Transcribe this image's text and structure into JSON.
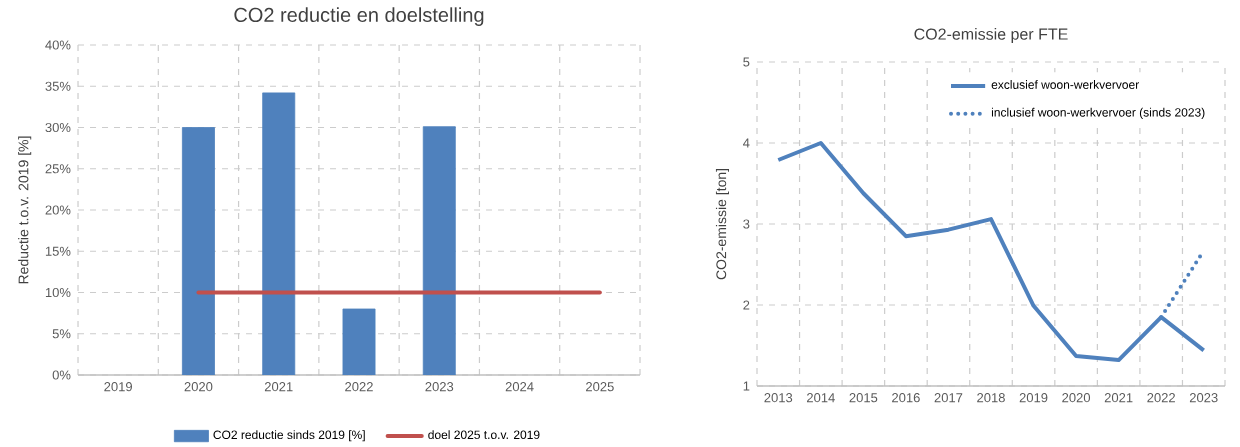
{
  "chart_data": [
    {
      "type": "bar",
      "title": "CO2 reductie en doelstelling",
      "ylabel": "Reductie t.o.v. 2019 [%]",
      "categories": [
        "2019",
        "2020",
        "2021",
        "2022",
        "2023",
        "2024",
        "2025"
      ],
      "series": [
        {
          "name": "CO2 reductie sinds 2019 [%]",
          "type": "bar",
          "color": "#4f81bd",
          "values": [
            null,
            30,
            34.2,
            8,
            30.1,
            null,
            null
          ]
        },
        {
          "name": "doel 2025 t.o.v. 2019",
          "type": "line",
          "color": "#c0504d",
          "values": [
            null,
            10,
            10,
            10,
            10,
            10,
            10
          ]
        }
      ],
      "ylim": [
        0,
        40
      ],
      "yticks": [
        {
          "value": 0,
          "label": "0%"
        },
        {
          "value": 5,
          "label": "5%"
        },
        {
          "value": 10,
          "label": "10%"
        },
        {
          "value": 15,
          "label": "15%"
        },
        {
          "value": 20,
          "label": "20%"
        },
        {
          "value": 25,
          "label": "25%"
        },
        {
          "value": 30,
          "label": "30%"
        },
        {
          "value": 35,
          "label": "35%"
        },
        {
          "value": 40,
          "label": "40%"
        }
      ],
      "grid": true,
      "legend": "bottom"
    },
    {
      "type": "line",
      "title": "CO2-emissie per FTE",
      "ylabel": "CO2-emissie [ton]",
      "categories": [
        "2013",
        "2014",
        "2015",
        "2016",
        "2017",
        "2018",
        "2019",
        "2020",
        "2021",
        "2022",
        "2023"
      ],
      "series": [
        {
          "name": "exclusief woon-werkvervoer",
          "color": "#4f81bd",
          "line_style": "solid",
          "values": [
            3.79,
            4.0,
            3.38,
            2.85,
            2.93,
            3.06,
            1.99,
            1.37,
            1.32,
            1.85,
            1.44
          ]
        },
        {
          "name": "inclusief woon-werkvervoer (sinds 2023)",
          "color": "#4f81bd",
          "line_style": "dotted",
          "values": [
            null,
            null,
            null,
            null,
            null,
            null,
            null,
            null,
            null,
            1.85,
            2.67
          ]
        }
      ],
      "ylim": [
        1,
        5
      ],
      "yticks": [
        1,
        2,
        3,
        4,
        5
      ],
      "grid": true,
      "legend": "top right"
    }
  ]
}
